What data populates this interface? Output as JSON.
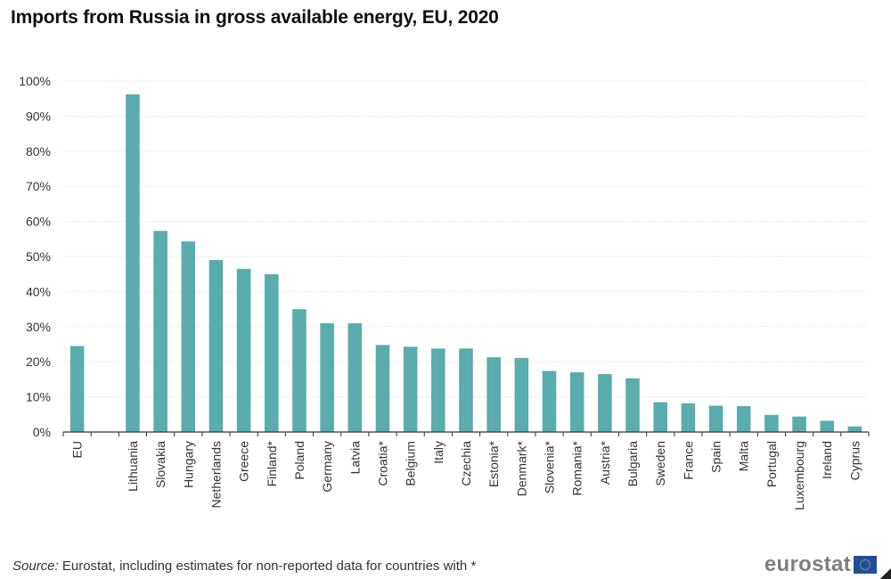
{
  "chart_data": {
    "type": "bar",
    "title": "Imports from Russia in gross available energy, EU, 2020",
    "xlabel": "",
    "ylabel": "",
    "ylim": [
      0,
      100
    ],
    "yticks": [
      "0%",
      "10%",
      "20%",
      "30%",
      "40%",
      "50%",
      "60%",
      "70%",
      "80%",
      "90%",
      "100%"
    ],
    "grid": true,
    "color": "#5aacad",
    "categories": [
      "EU",
      "",
      "Lithuania",
      "Slovakia",
      "Hungary",
      "Netherlands",
      "Greece",
      "Finland*",
      "Poland",
      "Germany",
      "Latvia",
      "Croatia*",
      "Belgium",
      "Italy",
      "Czechia",
      "Estonia*",
      "Denmark*",
      "Slovenia*",
      "Romania*",
      "Austria*",
      "Bulgaria",
      "Sweden",
      "France",
      "Spain",
      "Malta",
      "Portugal",
      "Luxembourg",
      "Ireland",
      "Cyprus"
    ],
    "values": [
      24.5,
      null,
      96.2,
      57.3,
      54.3,
      49.0,
      46.5,
      45.0,
      35.0,
      31.0,
      31.0,
      24.8,
      24.3,
      23.8,
      23.8,
      21.3,
      21.1,
      17.4,
      17.0,
      16.5,
      15.3,
      8.5,
      8.2,
      7.5,
      7.4,
      4.9,
      4.4,
      3.2,
      1.6
    ]
  },
  "footer": {
    "source_label": "Source:",
    "source_text": " Eurostat, including estimates for non-reported data for countries with *",
    "logo_text": "eurostat"
  }
}
